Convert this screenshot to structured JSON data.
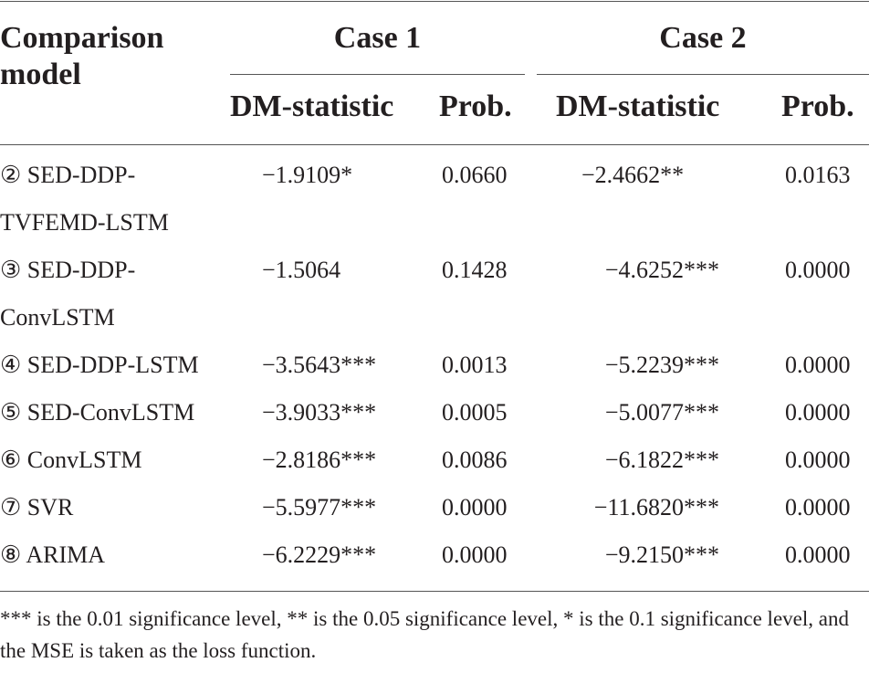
{
  "header": {
    "model_col": [
      "Comparison",
      "model"
    ],
    "case1": "Case 1",
    "case2": "Case 2",
    "dm_label": "DM-statistic",
    "prob_label": "Prob."
  },
  "rows": [
    {
      "model": [
        "② SED-DDP-",
        "TVFEMD-LSTM"
      ],
      "dm1": "−1.9109*",
      "p1": "0.0660",
      "dm2": "−2.4662**",
      "p2": "0.0163"
    },
    {
      "model": [
        "③ SED-DDP-",
        "ConvLSTM"
      ],
      "dm1": "−1.5064",
      "p1": "0.1428",
      "dm2": "−4.6252***",
      "p2": "0.0000"
    },
    {
      "model": [
        "④ SED-DDP-LSTM"
      ],
      "dm1": "−3.5643***",
      "p1": "0.0013",
      "dm2": "−5.2239***",
      "p2": "0.0000"
    },
    {
      "model": [
        "⑤ SED-ConvLSTM"
      ],
      "dm1": "−3.9033***",
      "p1": "0.0005",
      "dm2": "−5.0077***",
      "p2": "0.0000"
    },
    {
      "model": [
        "⑥ ConvLSTM"
      ],
      "dm1": "−2.8186***",
      "p1": "0.0086",
      "dm2": "−6.1822***",
      "p2": "0.0000"
    },
    {
      "model": [
        "⑦ SVR"
      ],
      "dm1": "−5.5977***",
      "p1": "0.0000",
      "dm2": "−11.6820***",
      "p2": "0.0000"
    },
    {
      "model": [
        "⑧ ARIMA"
      ],
      "dm1": "−6.2229***",
      "p1": "0.0000",
      "dm2": "−9.2150***",
      "p2": "0.0000"
    }
  ],
  "footnote": "*** is the 0.01 significance level, ** is the 0.05 significance level, * is the 0.1 significance level, and the MSE is taken as the loss function."
}
